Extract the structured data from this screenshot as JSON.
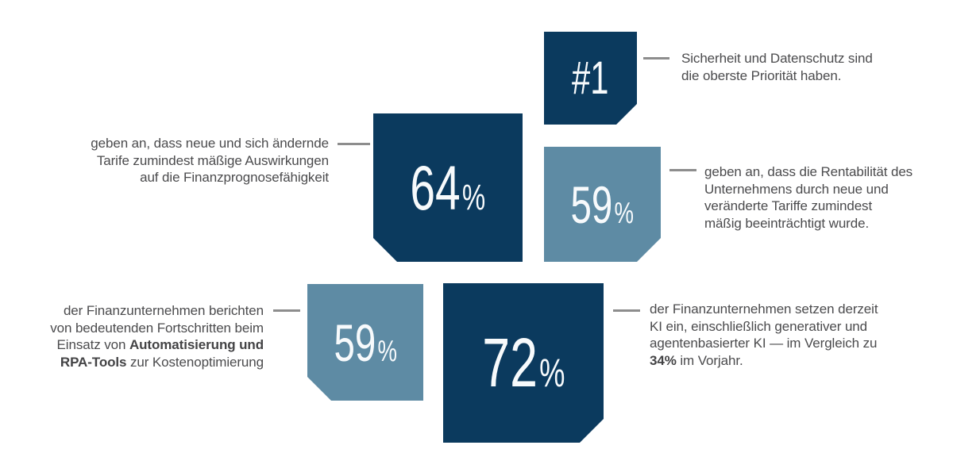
{
  "colors": {
    "navy_box": "#0b3a5e",
    "steel_box": "#5e8ba4",
    "number_text": "#f7fafc",
    "body_text": "#4b4b4d",
    "connector_line": "#8d8d8d",
    "background": "#ffffff"
  },
  "stat_rank": {
    "value": "#1",
    "lines": {
      "l1": "Sicherheit und Datenschutz sind",
      "l2": "die oberste Priorität haben."
    }
  },
  "stat_tariffs": {
    "value": "64",
    "unit": "%",
    "lines": {
      "l1": "geben an, dass neue und sich ändernde",
      "l2": "Tarife zumindest mäßige Auswirkungen",
      "l3": "auf die Finanzprognosefähigkeit"
    }
  },
  "stat_profit": {
    "value": "59",
    "unit": "%",
    "lines": {
      "l1": "geben an, dass die Rentabilität des",
      "l2": "Unternehmens durch neue und",
      "l3": "veränderte Tariffe zumindest",
      "l4": "mäßig beeinträchtigt wurde."
    }
  },
  "stat_rpa": {
    "value": "59",
    "unit": "%",
    "lines": {
      "l1": "der Finanzunternehmen berichten",
      "l2": "von bedeutenden Fortschritten beim",
      "l3a": "Einsatz von ",
      "l3b": "Automatisierung und",
      "l4a": "RPA-Tools",
      "l4b": " zur Kostenoptimierung"
    }
  },
  "stat_ai": {
    "value": "72",
    "unit": "%",
    "lines": {
      "l1": "der Finanzunternehmen setzen derzeit",
      "l2": "KI ein, einschließlich generativer und",
      "l3": "agentenbasierter KI — im Vergleich zu",
      "l4a": "34%",
      "l4b": " im Vorjahr."
    }
  },
  "chart_data": {
    "type": "table",
    "title": "",
    "items": [
      {
        "value": "#1",
        "label": "Sicherheit und Datenschutz sind die oberste Priorität haben.",
        "color": "#0b3a5e"
      },
      {
        "value": 64,
        "unit": "%",
        "label": "geben an, dass neue und sich ändernde Tarife zumindest mäßige Auswirkungen auf die Finanzprognosefähigkeit",
        "color": "#0b3a5e"
      },
      {
        "value": 59,
        "unit": "%",
        "label": "geben an, dass die Rentabilität des Unternehmens durch neue und veränderte Tariffe zumindest mäßig beeinträchtigt wurde.",
        "color": "#5e8ba4"
      },
      {
        "value": 59,
        "unit": "%",
        "label": "der Finanzunternehmen berichten von bedeutenden Fortschritten beim Einsatz von Automatisierung und RPA-Tools zur Kostenoptimierung",
        "color": "#5e8ba4"
      },
      {
        "value": 72,
        "unit": "%",
        "label": "der Finanzunternehmen setzen derzeit KI ein, einschließlich generativer und agentenbasierter KI — im Vergleich zu 34% im Vorjahr.",
        "color": "#0b3a5e"
      }
    ]
  }
}
